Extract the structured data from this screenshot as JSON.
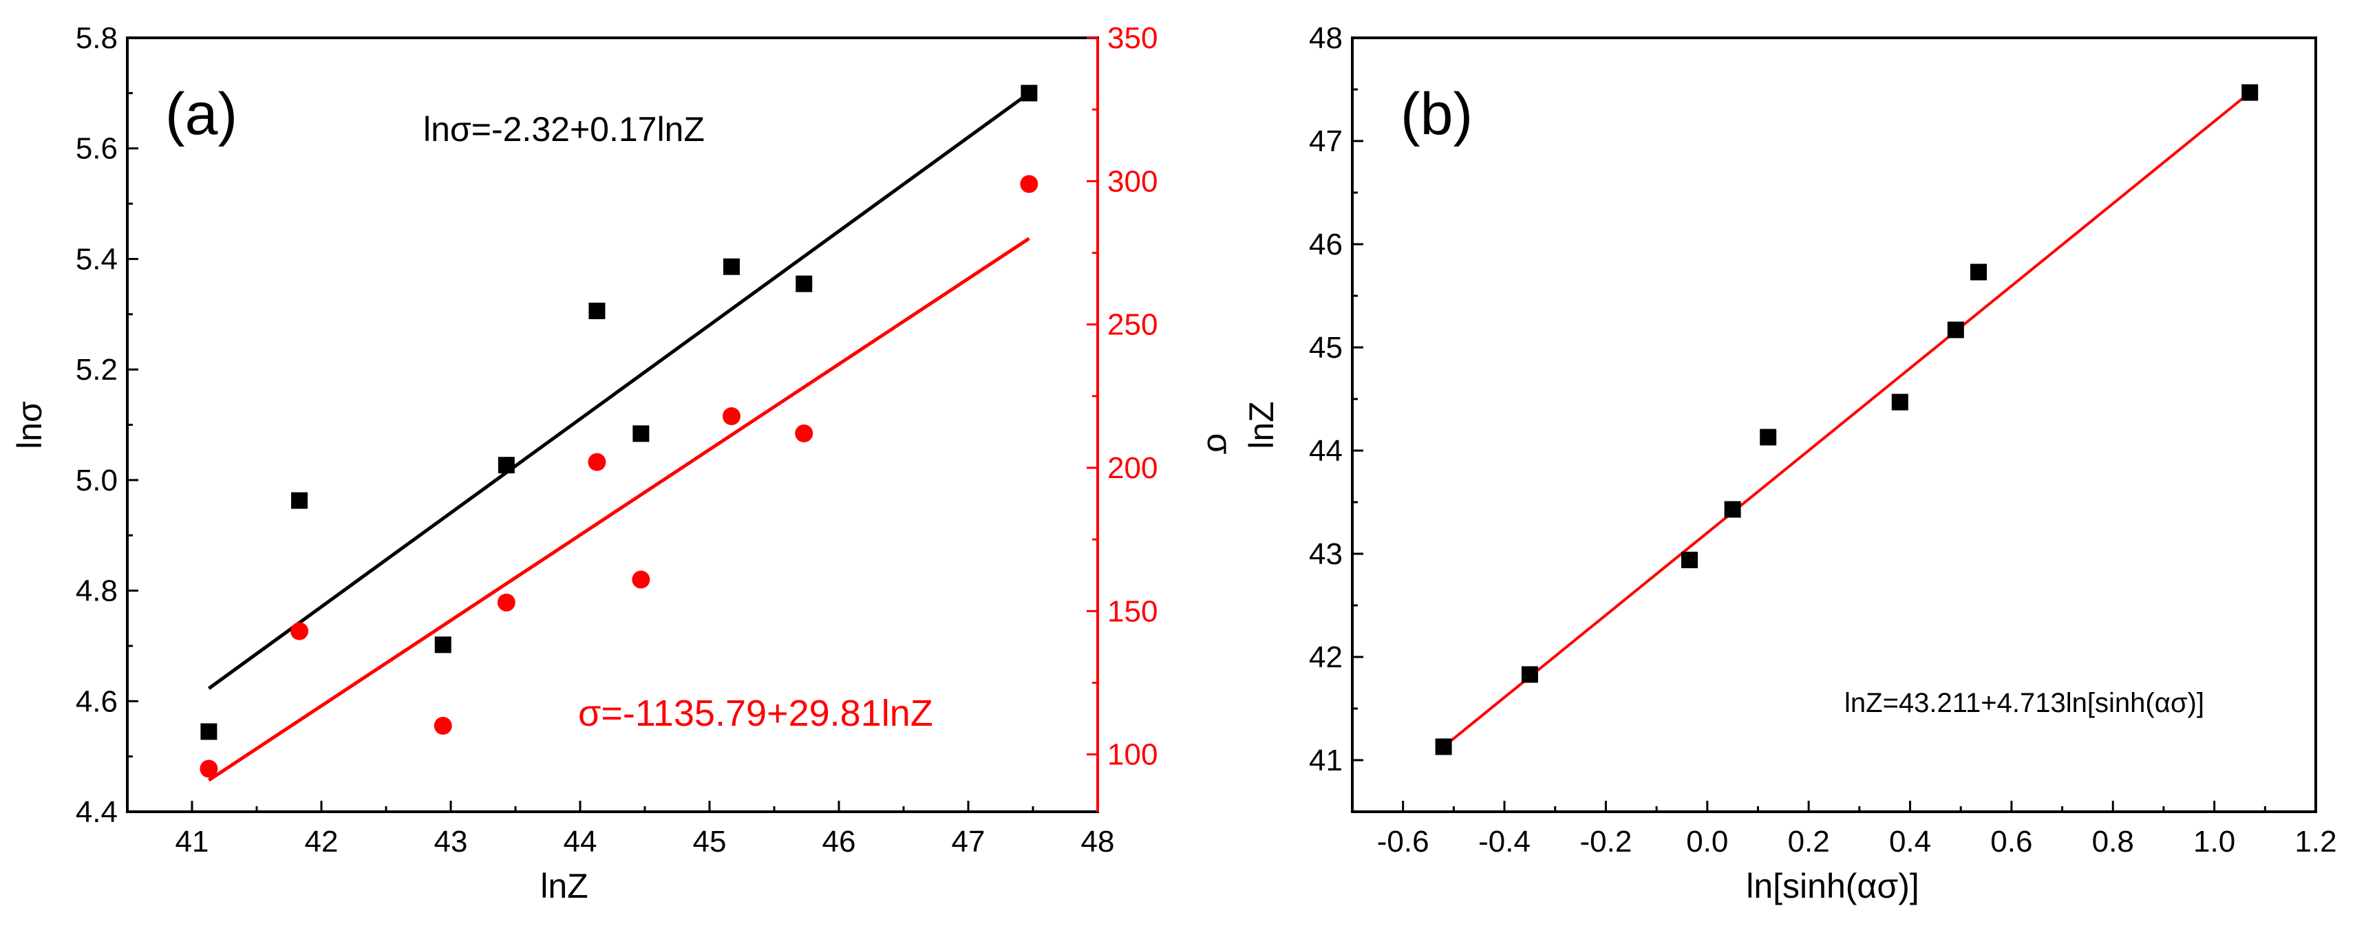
{
  "chart_data": [
    {
      "panel": "(a)",
      "type": "scatter",
      "xlabel": "lnZ",
      "ylabel": "lnσ",
      "y2label": "σ",
      "xlim": [
        40.5,
        48
      ],
      "ylim": [
        4.4,
        5.8
      ],
      "y2lim": [
        80,
        350
      ],
      "xticks": [
        "41",
        "42",
        "43",
        "44",
        "45",
        "46",
        "47",
        "48"
      ],
      "yticks": [
        "4.4",
        "4.6",
        "4.8",
        "5.0",
        "5.2",
        "5.4",
        "5.6",
        "5.8"
      ],
      "y2ticks": [
        "100",
        "150",
        "200",
        "250",
        "300",
        "350"
      ],
      "series": [
        {
          "name": "lnσ",
          "axis": "left",
          "color": "#000000",
          "marker": "square",
          "x": [
            41.13,
            41.83,
            42.94,
            43.43,
            44.13,
            44.47,
            45.17,
            45.73,
            47.47
          ],
          "y": [
            4.545,
            4.963,
            4.702,
            5.027,
            5.306,
            5.084,
            5.386,
            5.355,
            5.7
          ]
        },
        {
          "name": "σ",
          "axis": "right",
          "color": "#ff0000",
          "marker": "circle",
          "x": [
            41.13,
            41.83,
            42.94,
            43.43,
            44.13,
            44.47,
            45.17,
            45.73,
            47.47
          ],
          "y": [
            95,
            143,
            110,
            153,
            202,
            161,
            218,
            212,
            299
          ]
        }
      ],
      "fits": [
        {
          "axis": "left",
          "color": "#000000",
          "x": [
            41.13,
            47.47
          ],
          "y": [
            4.623,
            5.7
          ]
        },
        {
          "axis": "right",
          "color": "#ff0000",
          "x": [
            41.13,
            47.47
          ],
          "y": [
            91,
            280
          ]
        }
      ],
      "annotations": {
        "black_equation": "lnσ=-2.32+0.17lnZ",
        "red_equation": "σ=-1135.79+29.81lnZ"
      }
    },
    {
      "panel": "(b)",
      "type": "scatter",
      "xlabel": "ln[sinh(ασ)]",
      "ylabel": "lnZ",
      "xlim": [
        -0.7,
        1.2
      ],
      "ylim": [
        40.5,
        48
      ],
      "xticks": [
        "-0.6",
        "-0.4",
        "-0.2",
        "0.0",
        "0.2",
        "0.4",
        "0.6",
        "0.8",
        "1.0",
        "1.2"
      ],
      "yticks": [
        "41",
        "42",
        "43",
        "44",
        "45",
        "46",
        "47",
        "48"
      ],
      "series": [
        {
          "name": "lnZ",
          "color": "#000000",
          "marker": "square",
          "x": [
            -0.52,
            -0.35,
            -0.035,
            0.05,
            0.12,
            0.38,
            0.49,
            0.535,
            1.07
          ],
          "y": [
            41.13,
            41.83,
            42.94,
            43.43,
            44.13,
            44.47,
            45.17,
            45.73,
            47.47
          ]
        }
      ],
      "fits": [
        {
          "color": "#ff0000",
          "x": [
            -0.52,
            1.07
          ],
          "y": [
            41.13,
            47.47
          ]
        }
      ],
      "annotations": {
        "equation": "lnZ=43.211+4.713ln[sinh(ασ)]"
      }
    }
  ]
}
